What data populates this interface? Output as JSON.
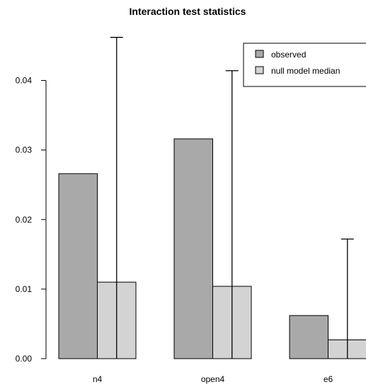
{
  "chart_data": {
    "type": "bar",
    "title": "Interaction test statistics",
    "xlabel": "",
    "ylabel": "",
    "categories": [
      "n4",
      "open4",
      "e6"
    ],
    "series": [
      {
        "name": "observed",
        "values": [
          0.0266,
          0.0316,
          0.0062
        ],
        "color": "#a9a9a9"
      },
      {
        "name": "null model median",
        "values": [
          0.011,
          0.0104,
          0.0027
        ],
        "color": "#d3d3d3"
      }
    ],
    "error_bars": {
      "series": "null model median",
      "lower": [
        0.0,
        0.0,
        0.0
      ],
      "upper": [
        0.0462,
        0.0414,
        0.0172
      ]
    },
    "ylim": [
      0,
      0.048
    ],
    "yticks": [
      0.0,
      0.01,
      0.02,
      0.03,
      0.04
    ],
    "ytick_labels": [
      "0.00",
      "0.01",
      "0.02",
      "0.03",
      "0.04"
    ],
    "grid": false,
    "legend_position": "top-right"
  }
}
